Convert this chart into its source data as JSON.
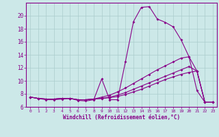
{
  "xlabel": "Windchill (Refroidissement éolien,°C)",
  "background_color": "#cce8e8",
  "line_color": "#880088",
  "grid_color": "#aacccc",
  "xlim": [
    -0.5,
    23.5
  ],
  "ylim": [
    6,
    22
  ],
  "yticks": [
    6,
    8,
    10,
    12,
    14,
    16,
    18,
    20
  ],
  "xticks": [
    0,
    1,
    2,
    3,
    4,
    5,
    6,
    7,
    8,
    9,
    10,
    11,
    12,
    13,
    14,
    15,
    16,
    17,
    18,
    19,
    20,
    21,
    22,
    23
  ],
  "series": [
    [
      7.5,
      7.3,
      7.1,
      7.1,
      7.2,
      7.3,
      7.0,
      6.9,
      7.1,
      10.3,
      7.1,
      7.1,
      13.0,
      19.1,
      21.3,
      21.4,
      19.5,
      19.0,
      18.3,
      16.3,
      13.7,
      8.5,
      6.7,
      6.7
    ],
    [
      7.5,
      7.3,
      7.2,
      7.2,
      7.3,
      7.3,
      7.1,
      7.1,
      7.2,
      7.3,
      7.4,
      7.6,
      7.9,
      8.3,
      8.7,
      9.2,
      9.7,
      10.2,
      10.6,
      11.0,
      11.3,
      11.5,
      6.7,
      6.7
    ],
    [
      7.5,
      7.3,
      7.2,
      7.2,
      7.3,
      7.3,
      7.1,
      7.1,
      7.2,
      7.3,
      7.5,
      7.8,
      8.2,
      8.7,
      9.2,
      9.7,
      10.2,
      10.7,
      11.2,
      11.7,
      12.2,
      11.5,
      6.7,
      6.7
    ],
    [
      7.5,
      7.3,
      7.2,
      7.2,
      7.3,
      7.3,
      7.1,
      7.1,
      7.2,
      7.5,
      7.8,
      8.3,
      8.9,
      9.6,
      10.3,
      11.0,
      11.7,
      12.3,
      12.9,
      13.5,
      13.7,
      11.5,
      6.7,
      6.7
    ]
  ]
}
